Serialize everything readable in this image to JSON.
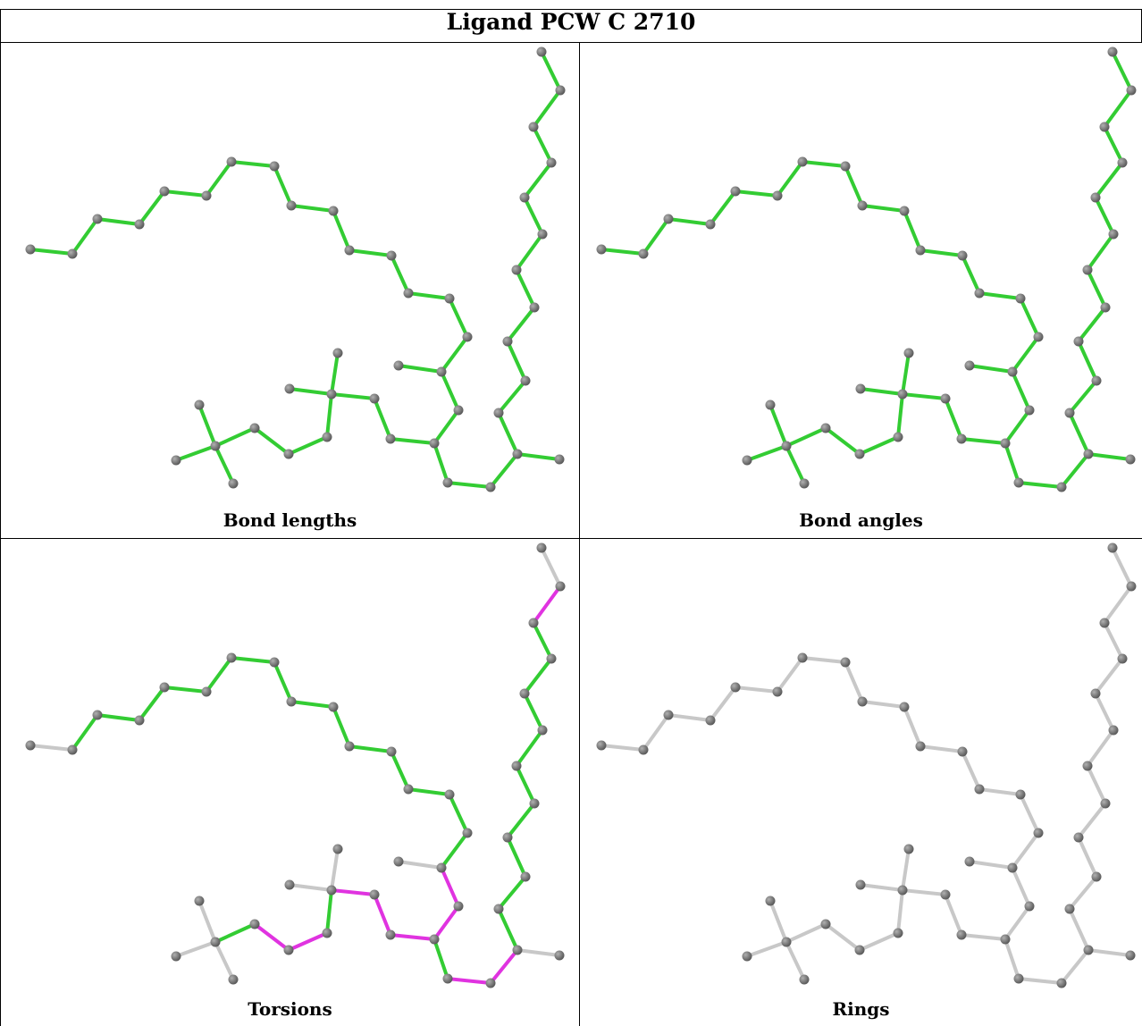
{
  "title": "Ligand PCW C 2710",
  "panels": [
    {
      "caption": "Bond lengths",
      "mode": "lengths"
    },
    {
      "caption": "Bond angles",
      "mode": "angles"
    },
    {
      "caption": "Torsions",
      "mode": "torsions"
    },
    {
      "caption": "Rings",
      "mode": "rings"
    }
  ],
  "colors": {
    "ok": "#33cc33",
    "outlier": "#e033e0",
    "none": "#c8c8c8",
    "atom": "#808080",
    "atom_highlight": "#b0b0b0"
  }
}
